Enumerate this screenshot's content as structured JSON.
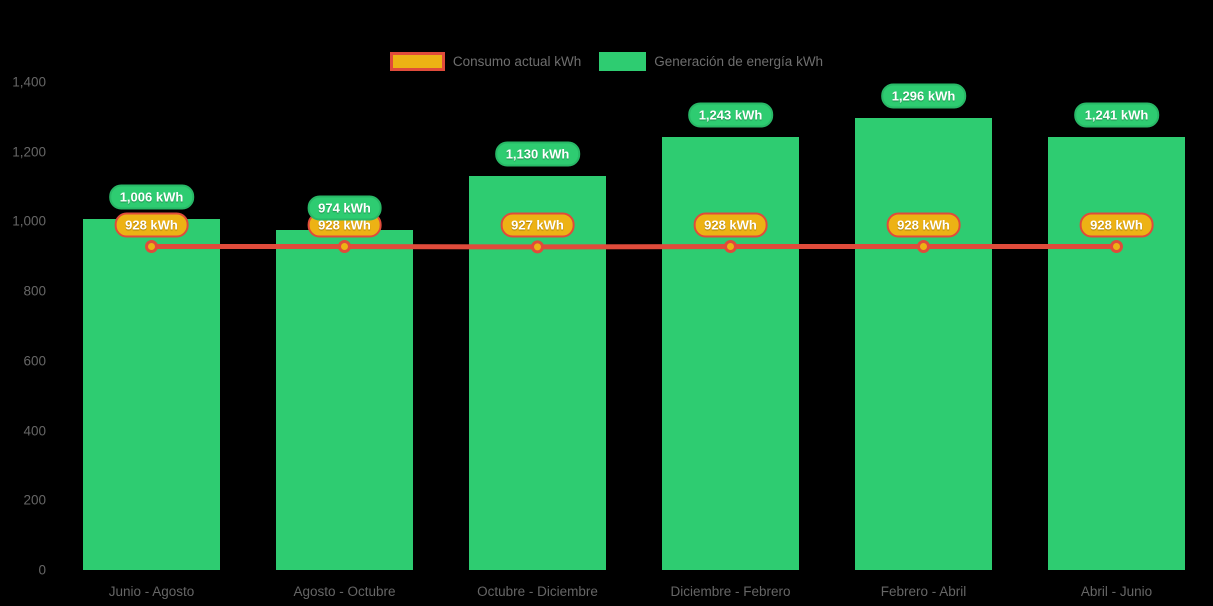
{
  "legend": {
    "items": [
      {
        "label": "Consumo actual kWh",
        "swatch": "line-swatch",
        "color": "#edb214",
        "border": "#e04b3b"
      },
      {
        "label": "Generación de energía kWh",
        "swatch": "bar-swatch",
        "color": "#2ecc71"
      }
    ]
  },
  "chart_data": {
    "type": "bar",
    "subtype": "bar-with-line-overlay",
    "categories": [
      "Junio - Agosto",
      "Agosto - Octubre",
      "Octubre - Diciembre",
      "Diciembre - Febrero",
      "Febrero - Abril",
      "Abril - Junio"
    ],
    "series": [
      {
        "name": "Generación de energía kWh",
        "type": "bar",
        "values": [
          1006,
          974,
          1130,
          1243,
          1296,
          1241
        ],
        "labels": [
          "1,006 kWh",
          "974 kWh",
          "1,130 kWh",
          "1,243 kWh",
          "1,296 kWh",
          "1,241 kWh"
        ],
        "color": "#2ecc71",
        "label_border": "#28b866"
      },
      {
        "name": "Consumo actual kWh",
        "type": "line",
        "values": [
          928,
          928,
          927,
          928,
          928,
          928
        ],
        "labels": [
          "928 kWh",
          "928 kWh",
          "927 kWh",
          "928 kWh",
          "928 kWh",
          "928 kWh"
        ],
        "color": "#e04b3b",
        "point_color": "#edb214",
        "label_fill": "#edb214",
        "label_border": "#e04b3b"
      }
    ],
    "title": "",
    "xlabel": "",
    "ylabel": "",
    "ylim": [
      0,
      1400
    ],
    "yticks": [
      0,
      200,
      400,
      600,
      800,
      1000,
      1200,
      1400
    ],
    "ytick_labels": [
      "0",
      "200",
      "400",
      "600",
      "800",
      "1,000",
      "1,200",
      "1,400"
    ],
    "grid": false,
    "legend_position": "top",
    "background": "#000000",
    "axis_text_color": "#666666"
  }
}
